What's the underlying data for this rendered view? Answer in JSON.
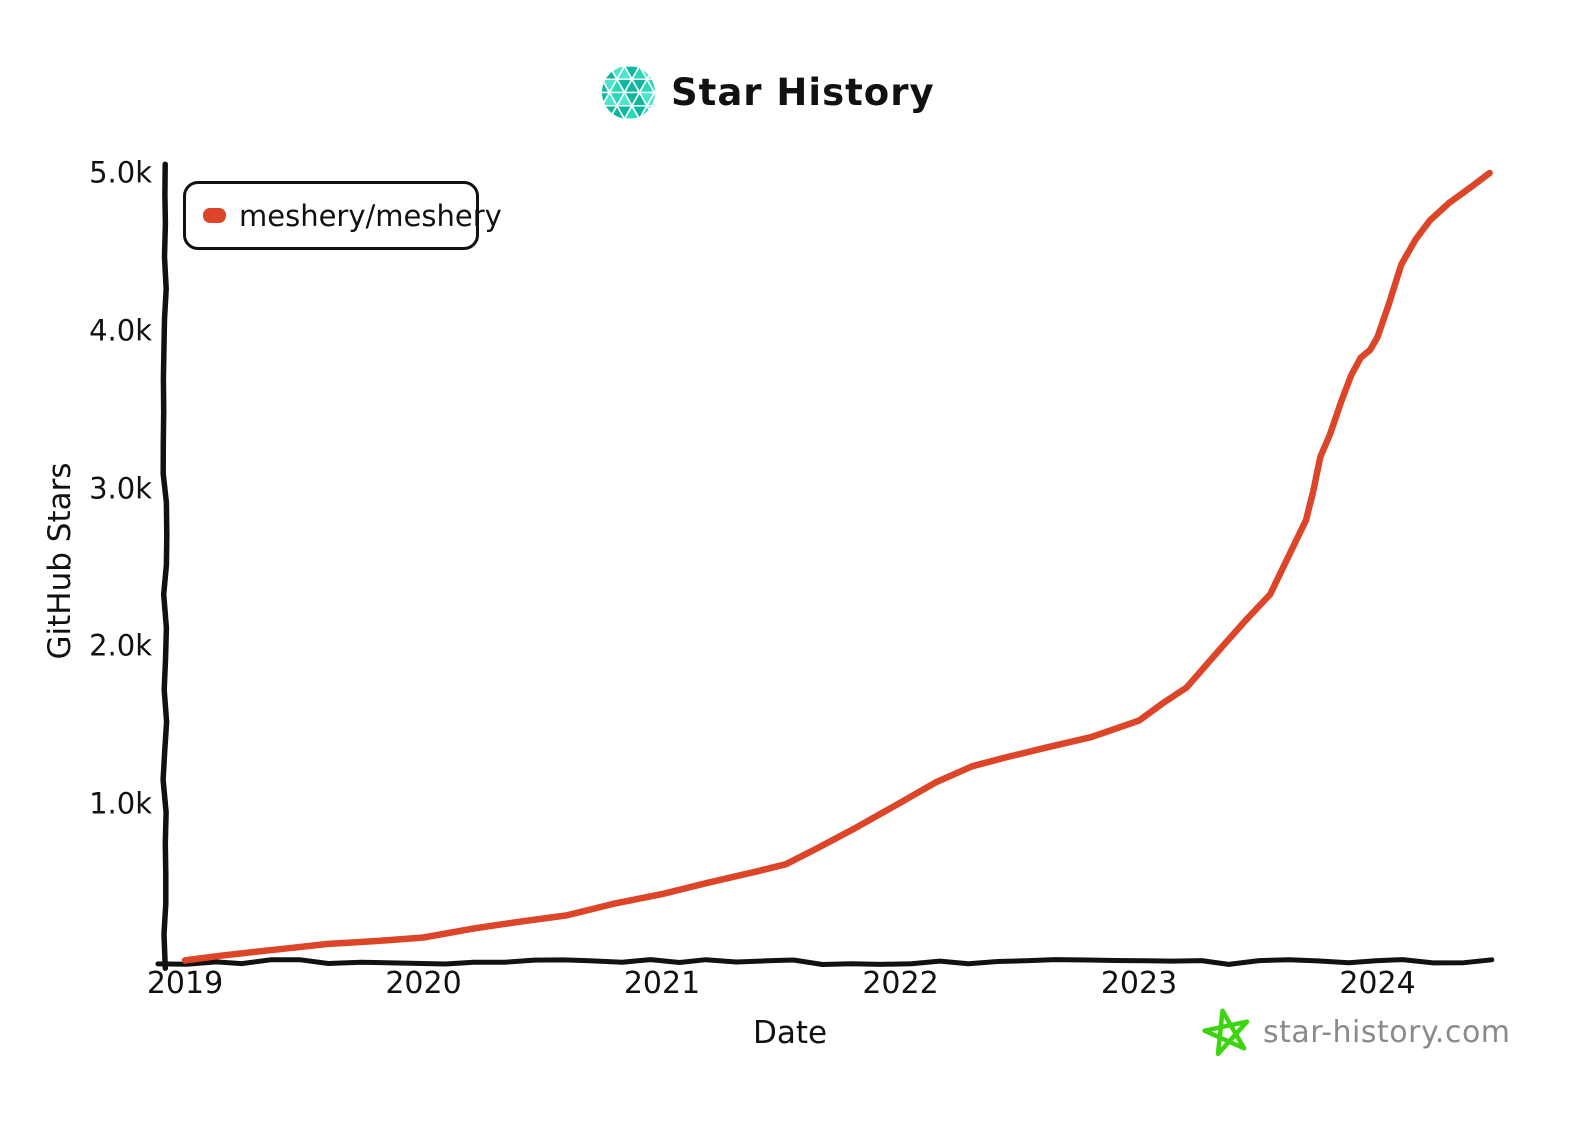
{
  "header": {
    "title": "Star History",
    "logo_icon": "triangle-mesh-circle",
    "logo_colors": [
      "#0fb6a0",
      "#2bd7b9",
      "#4ce5cb"
    ]
  },
  "legend": {
    "items": [
      {
        "label": "meshery/meshery",
        "marker_color": "#dd4528"
      }
    ]
  },
  "footer": {
    "site": "star-history.com",
    "star_icon": "hand-drawn-pentagram",
    "star_color": "#3ed412",
    "text_color": "#8a8a8a"
  },
  "chart_data": {
    "type": "line",
    "title": "Star History",
    "xlabel": "Date",
    "ylabel": "GitHub Stars",
    "grid": false,
    "legend_position": "top-left",
    "axis_color": "#111111",
    "xlim": [
      2018.92,
      2024.5
    ],
    "ylim": [
      0,
      5000
    ],
    "x_ticks": [
      {
        "label": "2019",
        "value": 2019
      },
      {
        "label": "2020",
        "value": 2020
      },
      {
        "label": "2021",
        "value": 2021
      },
      {
        "label": "2022",
        "value": 2022
      },
      {
        "label": "2023",
        "value": 2023
      },
      {
        "label": "2024",
        "value": 2024
      }
    ],
    "y_ticks": [
      {
        "label": "1.0k",
        "value": 1000
      },
      {
        "label": "2.0k",
        "value": 2000
      },
      {
        "label": "3.0k",
        "value": 3000
      },
      {
        "label": "4.0k",
        "value": 4000
      },
      {
        "label": "5.0k",
        "value": 5000
      }
    ],
    "series": [
      {
        "name": "meshery/meshery",
        "color": "#dd4528",
        "x_unit": "decimal_year",
        "y_unit": "github_stars",
        "points": [
          [
            2019.0,
            10
          ],
          [
            2019.15,
            40
          ],
          [
            2019.3,
            65
          ],
          [
            2019.45,
            90
          ],
          [
            2019.6,
            115
          ],
          [
            2019.72,
            125
          ],
          [
            2019.85,
            138
          ],
          [
            2020.0,
            155
          ],
          [
            2020.2,
            210
          ],
          [
            2020.4,
            255
          ],
          [
            2020.6,
            295
          ],
          [
            2020.8,
            370
          ],
          [
            2021.0,
            430
          ],
          [
            2021.2,
            505
          ],
          [
            2021.4,
            575
          ],
          [
            2021.52,
            620
          ],
          [
            2021.65,
            720
          ],
          [
            2021.8,
            840
          ],
          [
            2022.0,
            1010
          ],
          [
            2022.15,
            1140
          ],
          [
            2022.3,
            1240
          ],
          [
            2022.45,
            1300
          ],
          [
            2022.6,
            1355
          ],
          [
            2022.8,
            1425
          ],
          [
            2023.0,
            1530
          ],
          [
            2023.1,
            1640
          ],
          [
            2023.2,
            1740
          ],
          [
            2023.35,
            2000
          ],
          [
            2023.45,
            2170
          ],
          [
            2023.55,
            2330
          ],
          [
            2023.62,
            2550
          ],
          [
            2023.7,
            2800
          ],
          [
            2023.73,
            2980
          ],
          [
            2023.76,
            3200
          ],
          [
            2023.8,
            3340
          ],
          [
            2023.85,
            3560
          ],
          [
            2023.89,
            3720
          ],
          [
            2023.93,
            3830
          ],
          [
            2023.97,
            3880
          ],
          [
            2024.0,
            3960
          ],
          [
            2024.05,
            4180
          ],
          [
            2024.1,
            4420
          ],
          [
            2024.16,
            4580
          ],
          [
            2024.22,
            4700
          ],
          [
            2024.3,
            4810
          ],
          [
            2024.4,
            4920
          ],
          [
            2024.47,
            5000
          ]
        ]
      }
    ]
  }
}
